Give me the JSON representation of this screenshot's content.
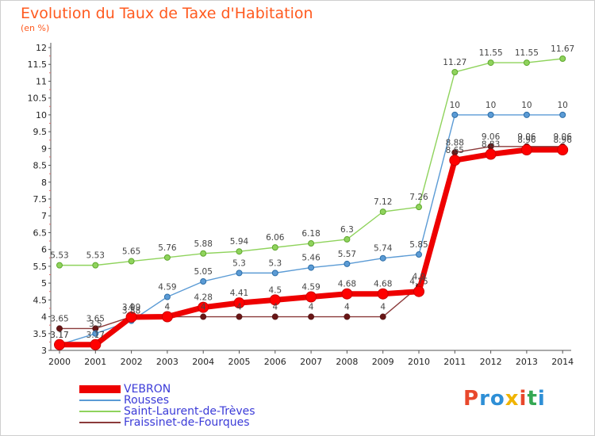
{
  "title": "Evolution du Taux de Taxe d'Habitation",
  "unit_label": "(en %)",
  "logo": {
    "text": [
      "P",
      "r",
      "o",
      "x",
      "i",
      "t",
      "i"
    ],
    "colors": [
      "#e8482c",
      "#2e8fd6",
      "#2e8fd6",
      "#f0b400",
      "#e8482c",
      "#35a853",
      "#2e8fd6"
    ]
  },
  "chart_data": {
    "type": "line",
    "x": [
      "2000",
      "2001",
      "2002",
      "2003",
      "2004",
      "2005",
      "2006",
      "2007",
      "2008",
      "2009",
      "2010",
      "2011",
      "2012",
      "2013",
      "2014"
    ],
    "ylim": [
      3,
      12
    ],
    "yticks": [
      "3",
      "3.5",
      "4",
      "4.5",
      "5",
      "5.5",
      "6",
      "6.5",
      "7",
      "7.5",
      "8",
      "8.5",
      "9",
      "9.5",
      "10",
      "10.5",
      "11",
      "11.5",
      "12"
    ],
    "grid": false,
    "legend_position": "bottom-left",
    "series": [
      {
        "name": "VEBRON",
        "color": "#ee0000",
        "values": [
          3.17,
          3.17,
          3.99,
          4,
          4.28,
          4.41,
          4.5,
          4.59,
          4.68,
          4.68,
          4.75,
          8.65,
          8.83,
          8.96,
          8.96
        ],
        "labels": [
          "3.17",
          "3.17",
          "3.99",
          "4",
          "4.28",
          "4.41",
          "4.5",
          "4.59",
          "4.68",
          "4.68",
          "4.75",
          "8.65",
          "8.83",
          "8.96",
          "8.96"
        ]
      },
      {
        "name": "Rousses",
        "color": "#5b9bd5",
        "values": [
          3.17,
          3.5,
          3.88,
          4.59,
          5.05,
          5.3,
          5.3,
          5.46,
          5.57,
          5.74,
          5.85,
          10,
          10,
          10,
          10
        ],
        "labels": [
          "3.17",
          "3.5",
          "3.88",
          "4.59",
          "5.05",
          "5.3",
          "5.3",
          "5.46",
          "5.57",
          "5.74",
          "5.85",
          "10",
          "10",
          "10",
          "10"
        ]
      },
      {
        "name": "Saint-Laurent-de-Trèves",
        "color": "#8fd35c",
        "values": [
          5.53,
          5.53,
          5.65,
          5.76,
          5.88,
          5.94,
          6.06,
          6.18,
          6.3,
          7.12,
          7.26,
          11.27,
          11.55,
          11.55,
          11.67
        ],
        "labels": [
          "5.53",
          "5.53",
          "5.65",
          "5.76",
          "5.88",
          "5.94",
          "6.06",
          "6.18",
          "6.3",
          "7.12",
          "7.26",
          "11.27",
          "11.55",
          "11.55",
          "11.67"
        ]
      },
      {
        "name": "Fraissinet-de-Fourques",
        "color": "#8b3a3a",
        "values": [
          3.65,
          3.65,
          4,
          4,
          4,
          4,
          4,
          4,
          4,
          4,
          4.9,
          8.88,
          9.06,
          9.06,
          9.06
        ],
        "labels": [
          "3.65",
          "3.65",
          "4",
          "4",
          "4",
          "4",
          "4",
          "4",
          "4",
          "4",
          "4.9",
          "8.88",
          "9.06",
          "9.06",
          "9.06"
        ]
      }
    ]
  }
}
